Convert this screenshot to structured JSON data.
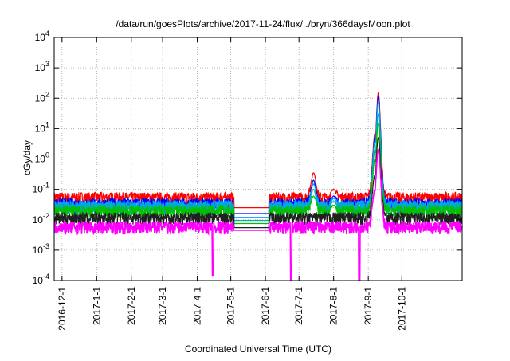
{
  "chart_data": {
    "type": "line",
    "title": "/data/run/goesPlots/archive/2017-11-24/flux/../bryn/366daysMoon.plot",
    "xlabel": "Coordinated Universal Time (UTC)",
    "ylabel": "cGy/day",
    "y_scale": "log",
    "ylim": [
      0.0001,
      10000
    ],
    "xlim": [
      "2016-11-24",
      "2017-11-24"
    ],
    "grid": true,
    "y_ticks": [
      {
        "base": "10",
        "exp": "-4",
        "value": 0.0001
      },
      {
        "base": "10",
        "exp": "-3",
        "value": 0.001
      },
      {
        "base": "10",
        "exp": "-2",
        "value": 0.01
      },
      {
        "base": "10",
        "exp": "-1",
        "value": 0.1
      },
      {
        "base": "10",
        "exp": "0",
        "value": 1
      },
      {
        "base": "10",
        "exp": "1",
        "value": 10
      },
      {
        "base": "10",
        "exp": "2",
        "value": 100
      },
      {
        "base": "10",
        "exp": "3",
        "value": 1000
      },
      {
        "base": "10",
        "exp": "4",
        "value": 10000
      }
    ],
    "x_ticks": [
      {
        "label": "2016-12-1",
        "date": "2016-12-01"
      },
      {
        "label": "2017-1-1",
        "date": "2017-01-01"
      },
      {
        "label": "2017-2-1",
        "date": "2017-02-01"
      },
      {
        "label": "2017-3-1",
        "date": "2017-03-01"
      },
      {
        "label": "2017-4-1",
        "date": "2017-04-01"
      },
      {
        "label": "2017-5-1",
        "date": "2017-05-01"
      },
      {
        "label": "2017-6-1",
        "date": "2017-06-01"
      },
      {
        "label": "2017-7-1",
        "date": "2017-07-01"
      },
      {
        "label": "2017-8-1",
        "date": "2017-08-01"
      },
      {
        "label": "2017-9-1",
        "date": "2017-09-01"
      },
      {
        "label": "2017-10-1",
        "date": "2017-10-01"
      }
    ],
    "gap": [
      "2017-05-04",
      "2017-06-04"
    ],
    "series": [
      {
        "color": "#ff0000",
        "base": 0.055,
        "gap_value": 0.025,
        "peaks": [
          [
            "2017-09-10",
            150
          ],
          [
            "2017-09-07",
            7
          ],
          [
            "2017-07-14",
            0.35
          ],
          [
            "2017-08-01",
            0.1
          ]
        ]
      },
      {
        "color": "#0000ff",
        "base": 0.035,
        "gap_value": 0.016,
        "peaks": [
          [
            "2017-09-10",
            110
          ],
          [
            "2017-09-07",
            5
          ],
          [
            "2017-07-14",
            0.2
          ],
          [
            "2017-08-01",
            0.06
          ]
        ]
      },
      {
        "color": "#00a0ff",
        "base": 0.03,
        "gap_value": 0.012,
        "peaks": [
          [
            "2017-09-10",
            80
          ],
          [
            "2017-09-07",
            4
          ],
          [
            "2017-07-14",
            0.15
          ],
          [
            "2017-08-01",
            0.05
          ]
        ]
      },
      {
        "color": "#00b0b0",
        "base": 0.025,
        "gap_value": 0.0095,
        "peaks": [
          [
            "2017-09-10",
            30
          ],
          [
            "2017-09-07",
            2
          ],
          [
            "2017-07-14",
            0.1
          ],
          [
            "2017-08-01",
            0.04
          ]
        ]
      },
      {
        "color": "#00c000",
        "base": 0.02,
        "gap_value": 0.0075,
        "peaks": [
          [
            "2017-09-10",
            15
          ],
          [
            "2017-09-07",
            1
          ],
          [
            "2017-07-14",
            0.06
          ],
          [
            "2017-08-01",
            0.03
          ]
        ]
      },
      {
        "color": "#202020",
        "base": 0.012,
        "gap_value": 0.0055,
        "peaks": [
          [
            "2017-09-10",
            5
          ],
          [
            "2017-09-07",
            0.3
          ]
        ]
      },
      {
        "color": "#ff00ff",
        "base": 0.006,
        "gap_value": 0.0045,
        "peaks": [
          [
            "2017-09-10",
            2
          ],
          [
            "2017-09-07",
            0.1
          ]
        ],
        "dips": [
          [
            "2017-04-15",
            0.00015
          ],
          [
            "2017-06-24",
            0.0001
          ],
          [
            "2017-08-24",
            0.0001
          ]
        ]
      }
    ]
  }
}
